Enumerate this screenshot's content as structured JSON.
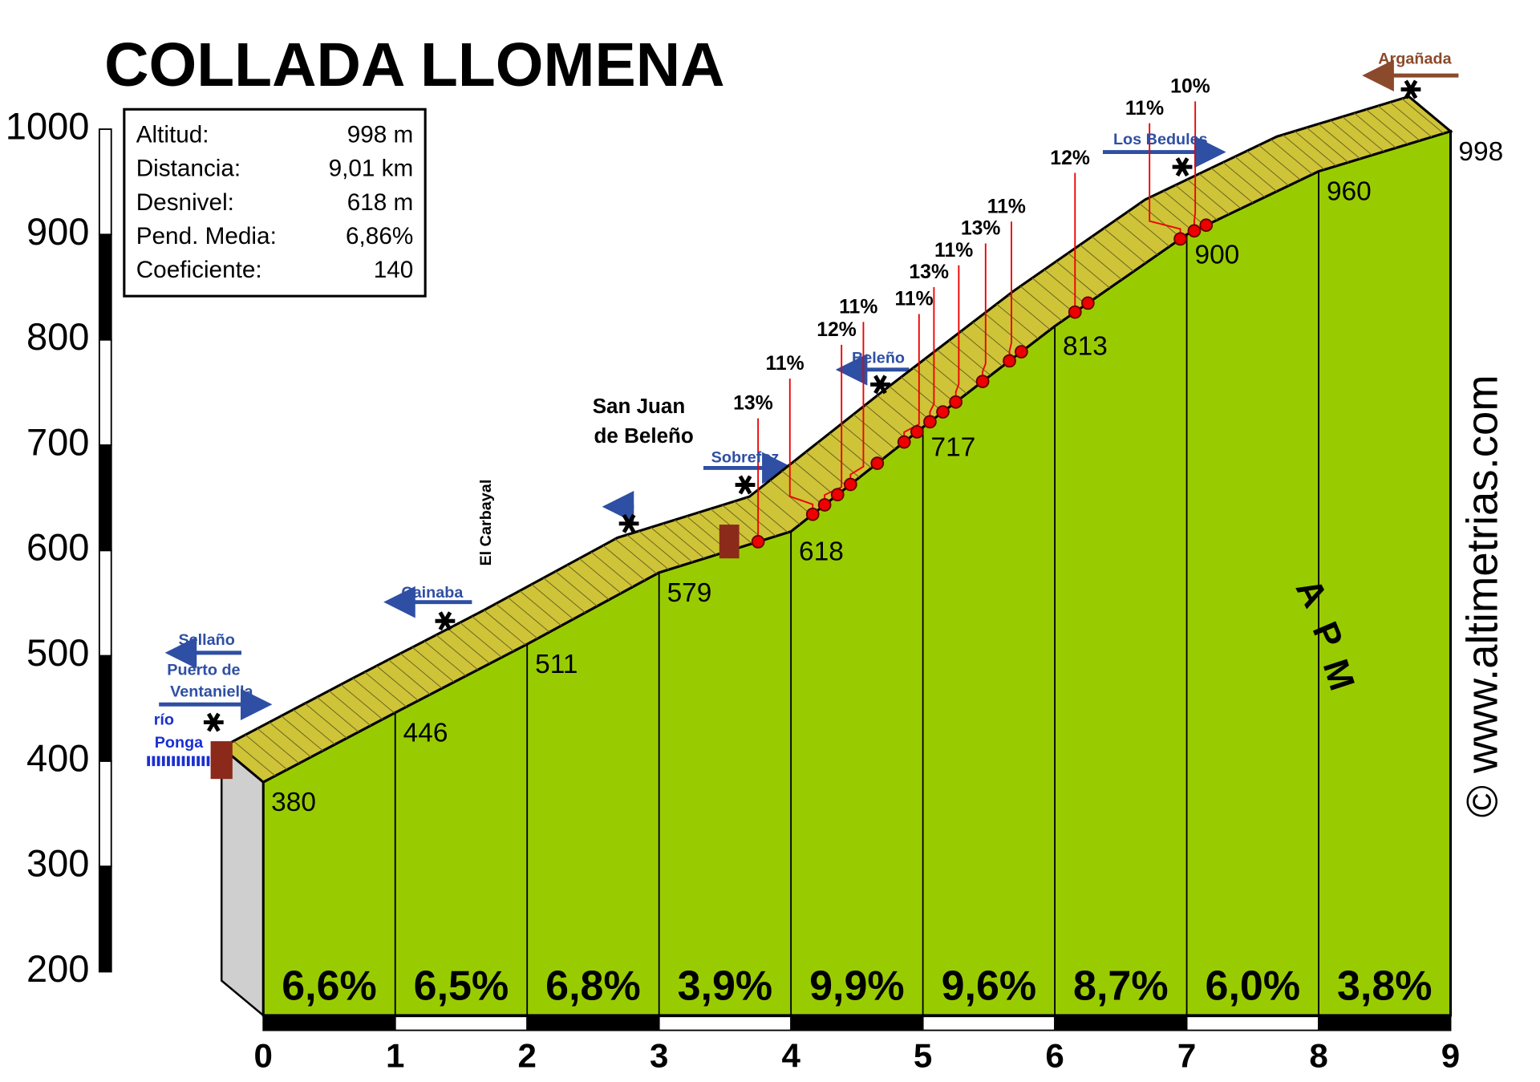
{
  "chart_data": {
    "type": "profile",
    "title": "COLLADA LLOMENA",
    "stats": [
      {
        "label": "Altitud:",
        "value": "998 m"
      },
      {
        "label": "Distancia:",
        "value": "9,01 km"
      },
      {
        "label": "Desnivel:",
        "value": "618 m"
      },
      {
        "label": "Pend. Media:",
        "value": "6,86%"
      },
      {
        "label": "Coeficiente:",
        "value": "140"
      }
    ],
    "x": [
      0,
      1,
      2,
      3,
      4,
      5,
      6,
      7,
      8,
      9
    ],
    "values": [
      380,
      446,
      511,
      579,
      618,
      717,
      813,
      900,
      960,
      998
    ],
    "color": "#99cc00",
    "xlim": [
      0,
      9
    ],
    "xticks": [
      0,
      1,
      2,
      3,
      4,
      5,
      6,
      7,
      8,
      9
    ],
    "ylim": [
      200,
      1000
    ],
    "yticks": [
      200,
      300,
      400,
      500,
      600,
      700,
      800,
      900,
      1000
    ],
    "segments": {
      "values": [
        6.6,
        6.5,
        6.8,
        3.9,
        9.9,
        9.6,
        8.7,
        6.0,
        3.8
      ],
      "value_labels": [
        "6,6%",
        "6,5%",
        "6,8%",
        "3,9%",
        "9,9%",
        "9,6%",
        "8,7%",
        "6,0%",
        "3,8%"
      ]
    },
    "steep_labels": [
      "13%",
      "11%",
      "12%",
      "11%",
      "11%",
      "13%",
      "11%",
      "13%",
      "11%",
      "12%",
      "11%",
      "10%"
    ],
    "annotations": [
      "Sellaño",
      "Puerto de",
      "Ventaniella",
      "río",
      "Ponga",
      "Cainaba",
      "El Carbayal",
      "San Juan",
      "de Beleño",
      "Sobrefoz",
      "Beleño",
      "Los Bedules",
      "Argañada"
    ],
    "logo": [
      "A",
      "P",
      "M"
    ],
    "watermark": "© www.altimetrias.com"
  }
}
